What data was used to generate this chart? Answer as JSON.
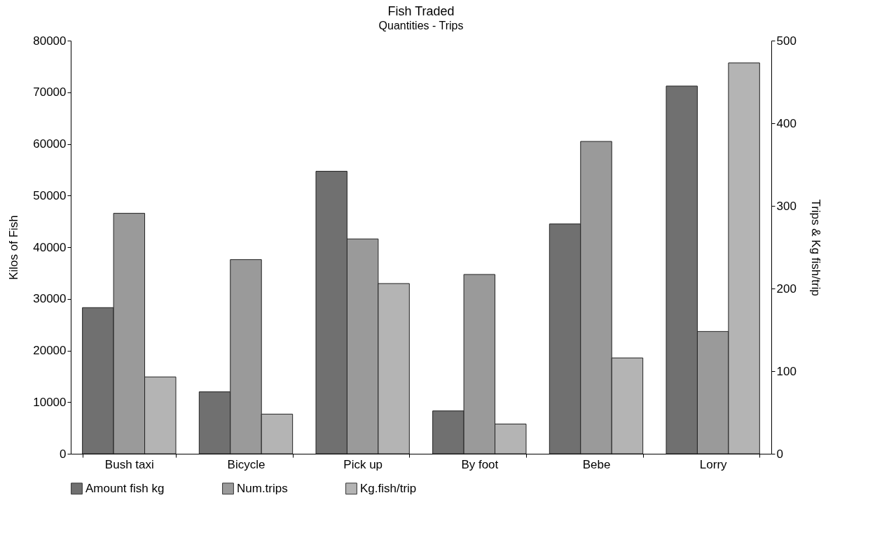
{
  "chart_data": {
    "type": "bar",
    "title": "Fish Traded",
    "subtitle": "Quantities - Trips",
    "ylabel": "Kilos of Fish",
    "y2label": "Trips & Kg fish/trip",
    "categories": [
      "Bush taxi",
      "Bicycle",
      "Pick up",
      "By foot",
      "Bebe",
      "Lorry"
    ],
    "series": [
      {
        "name": "Amount fish kg",
        "color": "#707070",
        "values": [
          28300,
          12000,
          54700,
          8300,
          44500,
          71200
        ]
      },
      {
        "name": "Num.trips",
        "color": "#9a9a9a",
        "axis": "y2",
        "values": [
          291,
          235,
          260,
          217,
          378,
          148
        ]
      },
      {
        "name": "Kg.fish/trip",
        "color": "#b4b4b4",
        "axis": "y2",
        "values": [
          93,
          48,
          206,
          36,
          116,
          473
        ]
      }
    ],
    "ylim": [
      0,
      80000
    ],
    "yticks": [
      0,
      10000,
      20000,
      30000,
      40000,
      50000,
      60000,
      70000,
      80000
    ],
    "y2lim": [
      0,
      500
    ],
    "y2ticks": [
      0,
      100,
      200,
      300,
      400,
      500
    ],
    "grid": false,
    "legend": "bottom"
  }
}
